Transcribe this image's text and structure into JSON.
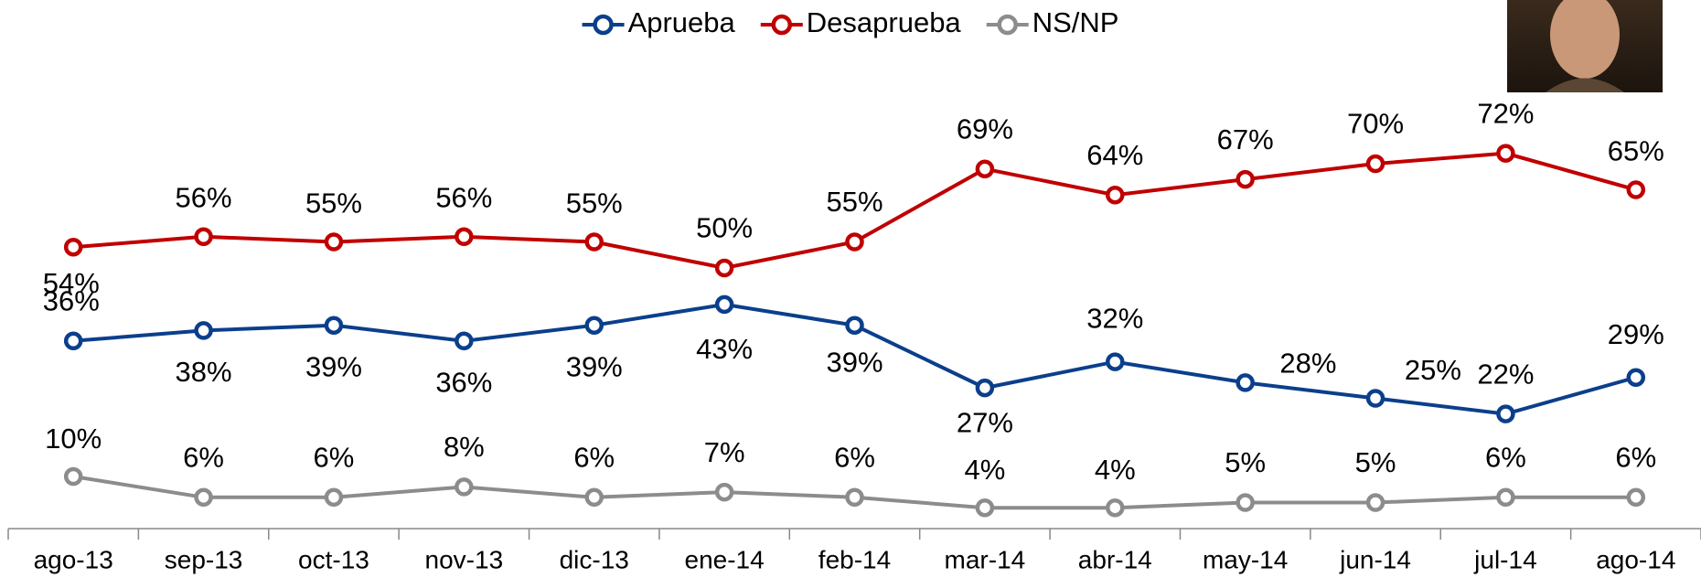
{
  "chart_data": {
    "type": "line",
    "categories": [
      "ago-13",
      "sep-13",
      "oct-13",
      "nov-13",
      "dic-13",
      "ene-14",
      "feb-14",
      "mar-14",
      "abr-14",
      "may-14",
      "jun-14",
      "jul-14",
      "ago-14"
    ],
    "ylim": [
      0,
      100
    ],
    "legend": "top",
    "series": [
      {
        "name": "Aprueba",
        "color": "#0b3f8c",
        "values": [
          36,
          38,
          39,
          36,
          39,
          43,
          39,
          27,
          32,
          28,
          25,
          22,
          29
        ],
        "value_labels": [
          "36%",
          "38%",
          "39%",
          "36%",
          "39%",
          "43%",
          "39%",
          "27%",
          "32%",
          "28%",
          "25%",
          "22%",
          "29%"
        ]
      },
      {
        "name": "Desaprueba",
        "color": "#c00000",
        "values": [
          54,
          56,
          55,
          56,
          55,
          50,
          55,
          69,
          64,
          67,
          70,
          72,
          65
        ],
        "value_labels": [
          "54%",
          "56%",
          "55%",
          "56%",
          "55%",
          "50%",
          "55%",
          "69%",
          "64%",
          "67%",
          "70%",
          "72%",
          "65%"
        ]
      },
      {
        "name": "NS/NP",
        "color": "#8c8c8c",
        "values": [
          10,
          6,
          6,
          8,
          6,
          7,
          6,
          4,
          4,
          5,
          5,
          6,
          6
        ],
        "value_labels": [
          "10%",
          "6%",
          "6%",
          "8%",
          "6%",
          "7%",
          "6%",
          "4%",
          "4%",
          "5%",
          "5%",
          "6%",
          "6%"
        ]
      }
    ]
  }
}
